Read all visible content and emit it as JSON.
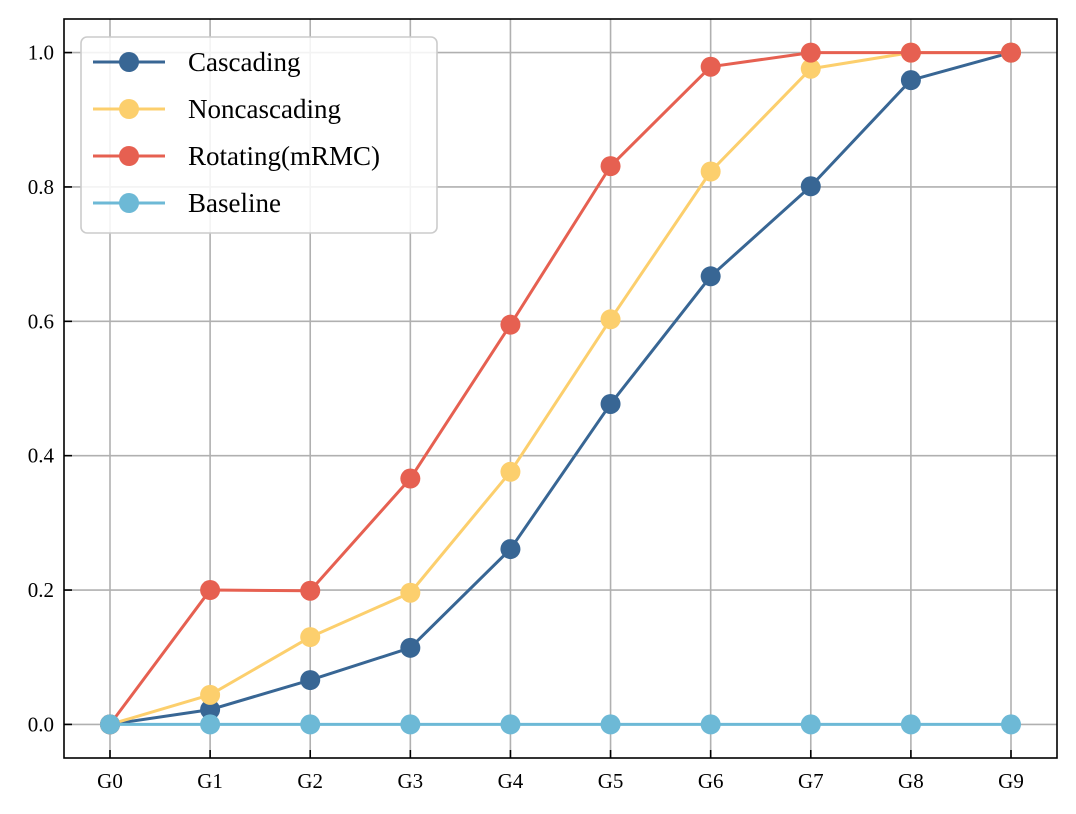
{
  "chart_data": {
    "type": "line",
    "title": "",
    "xlabel": "",
    "ylabel": "",
    "categories": [
      "G0",
      "G1",
      "G2",
      "G3",
      "G4",
      "G5",
      "G6",
      "G7",
      "G8",
      "G9"
    ],
    "ylim": [
      -0.05,
      1.05
    ],
    "yticks": [
      0.0,
      0.2,
      0.4,
      0.6,
      0.8,
      1.0
    ],
    "ytick_labels": [
      "0.0",
      "0.2",
      "0.4",
      "0.6",
      "0.8",
      "1.0"
    ],
    "grid": true,
    "legend_position": "top-left",
    "series": [
      {
        "name": "Cascading",
        "color": "#386694",
        "values": [
          0.0,
          0.022,
          0.066,
          0.114,
          0.261,
          0.477,
          0.667,
          0.801,
          0.959,
          1.0
        ]
      },
      {
        "name": "Noncascading",
        "color": "#fccf6d",
        "values": [
          0.0,
          0.044,
          0.13,
          0.196,
          0.376,
          0.603,
          0.823,
          0.976,
          1.0,
          1.0
        ]
      },
      {
        "name": "Rotating(mRMC)",
        "color": "#e66051",
        "values": [
          0.0,
          0.2,
          0.199,
          0.366,
          0.595,
          0.831,
          0.979,
          1.0,
          1.0,
          1.0
        ]
      },
      {
        "name": "Baseline",
        "color": "#6db9d6",
        "values": [
          0.0,
          0.0,
          0.0,
          0.0,
          0.0,
          0.0,
          0.0,
          0.0,
          0.0,
          0.0
        ]
      }
    ]
  }
}
